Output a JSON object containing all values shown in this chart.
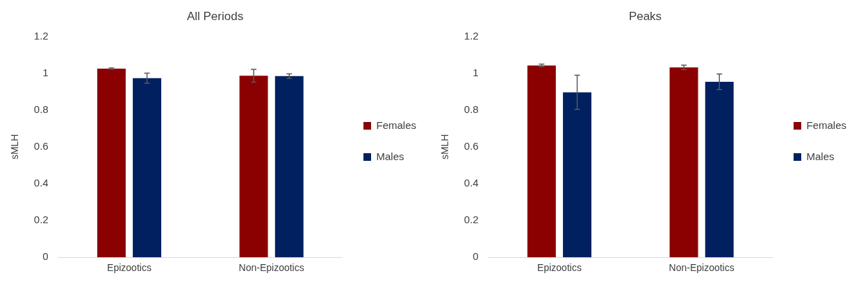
{
  "chart_data": [
    {
      "type": "bar",
      "title": "All Periods",
      "ylabel": "sMLH",
      "categories": [
        "Epizootics",
        "Non-Epizootics"
      ],
      "ylim": [
        0,
        1.2
      ],
      "yticks": [
        0,
        0.2,
        0.4,
        0.6,
        0.8,
        1,
        1.2
      ],
      "grid": false,
      "legend": "right",
      "series": [
        {
          "name": "Females",
          "color": "#8b0000",
          "values": [
            1.025,
            0.986
          ],
          "errors": [
            0.003,
            0.035
          ]
        },
        {
          "name": "Males",
          "color": "#002060",
          "values": [
            0.973,
            0.984
          ],
          "errors": [
            0.027,
            0.012
          ]
        }
      ]
    },
    {
      "type": "bar",
      "title": "Peaks",
      "ylabel": "sMLH",
      "categories": [
        "Epizootics",
        "Non-Epizootics"
      ],
      "ylim": [
        0,
        1.2
      ],
      "yticks": [
        0,
        0.2,
        0.4,
        0.6,
        0.8,
        1,
        1.2
      ],
      "grid": false,
      "legend": "right",
      "series": [
        {
          "name": "Females",
          "color": "#8b0000",
          "values": [
            1.042,
            1.031
          ],
          "errors": [
            0.007,
            0.012
          ]
        },
        {
          "name": "Males",
          "color": "#002060",
          "values": [
            0.896,
            0.953
          ],
          "errors": [
            0.093,
            0.042
          ]
        }
      ]
    }
  ]
}
